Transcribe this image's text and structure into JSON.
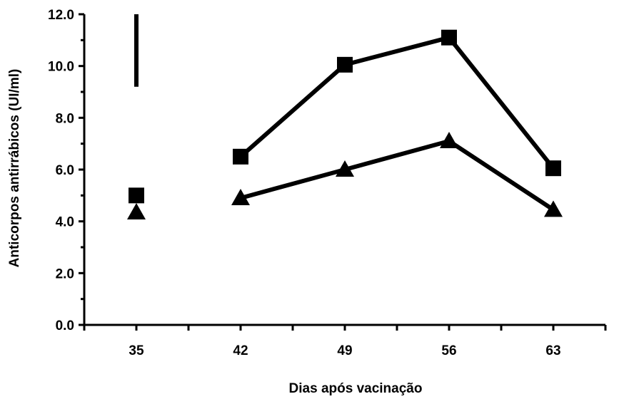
{
  "chart_data": {
    "type": "line",
    "title": "",
    "xlabel": "Dias após vacinação",
    "ylabel": "Anticorpos antirrábicos (UI/ml)",
    "x_ticks": [
      "35",
      "42",
      "49",
      "56",
      "63"
    ],
    "y_ticks": [
      "0.0",
      "2.0",
      "4.0",
      "6.0",
      "8.0",
      "10.0",
      "12.0"
    ],
    "xlim": [
      31.5,
      66.5
    ],
    "ylim": [
      0,
      12
    ],
    "grid": false,
    "legend": "none",
    "series": [
      {
        "marker": "square",
        "color": "#000000",
        "points": [
          {
            "x": 35,
            "y": 5.0,
            "connected": false
          },
          {
            "x": 42,
            "y": 6.5,
            "connected": true
          },
          {
            "x": 49,
            "y": 10.05,
            "connected": true
          },
          {
            "x": 56,
            "y": 11.1,
            "connected": true
          },
          {
            "x": 63,
            "y": 6.05,
            "connected": true
          }
        ]
      },
      {
        "marker": "triangle",
        "color": "#000000",
        "points": [
          {
            "x": 35,
            "y": 4.35,
            "connected": false
          },
          {
            "x": 42,
            "y": 4.9,
            "connected": true
          },
          {
            "x": 49,
            "y": 6.0,
            "connected": true
          },
          {
            "x": 56,
            "y": 7.1,
            "connected": true
          },
          {
            "x": 63,
            "y": 4.45,
            "connected": true
          }
        ]
      }
    ],
    "reference_bar": {
      "x": 35,
      "y_from": 9.2,
      "y_to": 12.0
    }
  }
}
